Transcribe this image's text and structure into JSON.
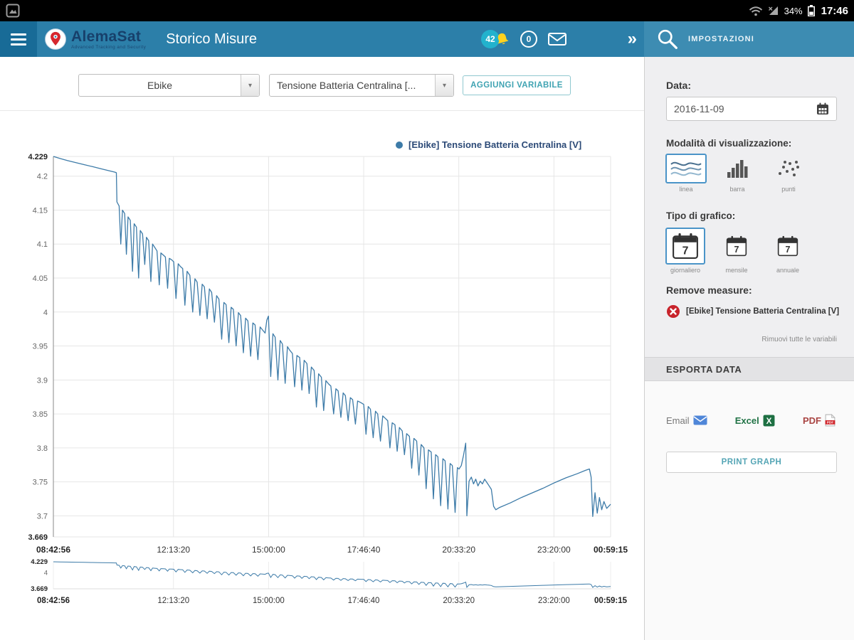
{
  "status_bar": {
    "battery_percent": "34%",
    "time": "17:46"
  },
  "app_bar": {
    "brand": "AlemaSat",
    "tagline": "Advanced Tracking and Security",
    "title": "Storico Misure",
    "alerts_count": "42",
    "messages_count": "0"
  },
  "sidebar_header": {
    "title": "IMPOSTAZIONI"
  },
  "toolbar": {
    "device_value": "Ebike",
    "variable_value": "Tensione Batteria Centralina [...",
    "add_variable": "AGGIUNGI VARIABILE"
  },
  "settings": {
    "date_label": "Data:",
    "date_value": "2016-11-09",
    "view_mode_label": "Modalità di visualizzazione:",
    "view_modes": [
      {
        "label": "linea"
      },
      {
        "label": "barra"
      },
      {
        "label": "punti"
      }
    ],
    "graph_type_label": "Tipo di grafico:",
    "graph_types": [
      {
        "label": "giornaliero"
      },
      {
        "label": "mensile"
      },
      {
        "label": "annuale"
      }
    ],
    "remove_label": "Remove measure:",
    "remove_item": "[Ebike] Tensione Batteria Centralina [V]",
    "remove_all": "Rimuovi tutte le variabili",
    "export_header": "ESPORTA DATA",
    "export": {
      "email": "Email",
      "excel": "Excel",
      "pdf": "PDF"
    },
    "print_button": "PRINT GRAPH"
  },
  "chart_data": {
    "type": "line",
    "title": "",
    "legend": "[Ebike] Tensione Batteria Centralina [V]",
    "ylim": [
      3.669,
      4.229
    ],
    "yticks": [
      {
        "v": 3.669,
        "label": "3.669",
        "bold": true
      },
      {
        "v": 3.7,
        "label": "3.7"
      },
      {
        "v": 3.75,
        "label": "3.75"
      },
      {
        "v": 3.8,
        "label": "3.8"
      },
      {
        "v": 3.85,
        "label": "3.85"
      },
      {
        "v": 3.9,
        "label": "3.9"
      },
      {
        "v": 3.95,
        "label": "3.95"
      },
      {
        "v": 4,
        "label": "4"
      },
      {
        "v": 4.05,
        "label": "4.05"
      },
      {
        "v": 4.1,
        "label": "4.1"
      },
      {
        "v": 4.15,
        "label": "4.15"
      },
      {
        "v": 4.2,
        "label": "4.2"
      },
      {
        "v": 4.229,
        "label": "4.229",
        "bold": true
      }
    ],
    "xticks": [
      {
        "f": 0,
        "label": "08:42:56",
        "bold": true
      },
      {
        "f": 0.2155,
        "label": "12:13:20"
      },
      {
        "f": 0.3862,
        "label": "15:00:00"
      },
      {
        "f": 0.5569,
        "label": "17:46:40"
      },
      {
        "f": 0.7276,
        "label": "20:33:20"
      },
      {
        "f": 0.8983,
        "label": "23:20:00"
      },
      {
        "f": 1,
        "label": "00:59:15",
        "bold": true
      }
    ],
    "navigator": {
      "yticks": [
        {
          "v": 4.229,
          "label": "4.229",
          "bold": true
        },
        {
          "v": 4,
          "label": "4"
        },
        {
          "v": 3.669,
          "label": "3.669",
          "bold": true
        }
      ]
    },
    "series": [
      {
        "name": "[Ebike] Tensione Batteria Centralina [V]",
        "color": "#3d7ba8",
        "points": [
          [
            0,
            4.229
          ],
          [
            0.012,
            4.226
          ],
          [
            0.025,
            4.223
          ],
          [
            0.04,
            4.22
          ],
          [
            0.055,
            4.217
          ],
          [
            0.07,
            4.214
          ],
          [
            0.085,
            4.211
          ],
          [
            0.1,
            4.208
          ],
          [
            0.11,
            4.206
          ],
          [
            0.113,
            4.205
          ],
          [
            0.114,
            4.162
          ],
          [
            0.118,
            4.156
          ],
          [
            0.121,
            4.1
          ],
          [
            0.124,
            4.15
          ],
          [
            0.128,
            4.145
          ],
          [
            0.131,
            4.085
          ],
          [
            0.134,
            4.14
          ],
          [
            0.138,
            4.135
          ],
          [
            0.142,
            4.06
          ],
          [
            0.145,
            4.13
          ],
          [
            0.149,
            4.125
          ],
          [
            0.153,
            4.05
          ],
          [
            0.156,
            4.12
          ],
          [
            0.16,
            4.115
          ],
          [
            0.164,
            4.07
          ],
          [
            0.167,
            4.11
          ],
          [
            0.171,
            4.105
          ],
          [
            0.175,
            4.045
          ],
          [
            0.178,
            4.1
          ],
          [
            0.182,
            4.095
          ],
          [
            0.186,
            4.09
          ],
          [
            0.19,
            4.04
          ],
          [
            0.193,
            4.087
          ],
          [
            0.197,
            4.084
          ],
          [
            0.201,
            4.081
          ],
          [
            0.205,
            4.035
          ],
          [
            0.208,
            4.079
          ],
          [
            0.212,
            4.077
          ],
          [
            0.216,
            4.074
          ],
          [
            0.22,
            4.02
          ],
          [
            0.224,
            4.071
          ],
          [
            0.228,
            4.067
          ],
          [
            0.232,
            4.064
          ],
          [
            0.236,
            4.01
          ],
          [
            0.24,
            4.06
          ],
          [
            0.245,
            4.054
          ],
          [
            0.25,
            4.0
          ],
          [
            0.254,
            4.049
          ],
          [
            0.258,
            4.044
          ],
          [
            0.263,
            3.995
          ],
          [
            0.267,
            4.041
          ],
          [
            0.271,
            4.037
          ],
          [
            0.276,
            3.99
          ],
          [
            0.28,
            4.034
          ],
          [
            0.284,
            4.029
          ],
          [
            0.289,
            3.985
          ],
          [
            0.293,
            4.024
          ],
          [
            0.297,
            4.019
          ],
          [
            0.302,
            3.96
          ],
          [
            0.306,
            4.014
          ],
          [
            0.31,
            4.011
          ],
          [
            0.315,
            3.955
          ],
          [
            0.319,
            4.007
          ],
          [
            0.323,
            4.004
          ],
          [
            0.328,
            3.95
          ],
          [
            0.332,
            3.999
          ],
          [
            0.336,
            3.995
          ],
          [
            0.341,
            3.94
          ],
          [
            0.345,
            3.991
          ],
          [
            0.349,
            3.987
          ],
          [
            0.354,
            3.935
          ],
          [
            0.358,
            3.984
          ],
          [
            0.362,
            3.981
          ],
          [
            0.367,
            3.93
          ],
          [
            0.371,
            3.978
          ],
          [
            0.375,
            3.974
          ],
          [
            0.38,
            3.969
          ],
          [
            0.383,
            3.988
          ],
          [
            0.386,
            3.994
          ],
          [
            0.39,
            3.905
          ],
          [
            0.394,
            3.968
          ],
          [
            0.398,
            3.963
          ],
          [
            0.403,
            3.9
          ],
          [
            0.407,
            3.958
          ],
          [
            0.411,
            3.953
          ],
          [
            0.416,
            3.895
          ],
          [
            0.42,
            3.949
          ],
          [
            0.424,
            3.944
          ],
          [
            0.429,
            3.939
          ],
          [
            0.433,
            3.89
          ],
          [
            0.437,
            3.936
          ],
          [
            0.442,
            3.933
          ],
          [
            0.446,
            3.885
          ],
          [
            0.45,
            3.929
          ],
          [
            0.455,
            3.924
          ],
          [
            0.459,
            3.88
          ],
          [
            0.463,
            3.919
          ],
          [
            0.468,
            3.914
          ],
          [
            0.472,
            3.86
          ],
          [
            0.476,
            3.909
          ],
          [
            0.481,
            3.904
          ],
          [
            0.485,
            3.855
          ],
          [
            0.489,
            3.899
          ],
          [
            0.494,
            3.894
          ],
          [
            0.498,
            3.891
          ],
          [
            0.503,
            3.85
          ],
          [
            0.507,
            3.887
          ],
          [
            0.511,
            3.884
          ],
          [
            0.516,
            3.845
          ],
          [
            0.52,
            3.881
          ],
          [
            0.524,
            3.877
          ],
          [
            0.529,
            3.84
          ],
          [
            0.533,
            3.874
          ],
          [
            0.537,
            3.871
          ],
          [
            0.542,
            3.835
          ],
          [
            0.546,
            3.869
          ],
          [
            0.551,
            3.867
          ],
          [
            0.557,
            3.864
          ],
          [
            0.561,
            3.82
          ],
          [
            0.565,
            3.861
          ],
          [
            0.569,
            3.857
          ],
          [
            0.574,
            3.815
          ],
          [
            0.578,
            3.854
          ],
          [
            0.582,
            3.85
          ],
          [
            0.587,
            3.81
          ],
          [
            0.591,
            3.847
          ],
          [
            0.595,
            3.844
          ],
          [
            0.6,
            3.84
          ],
          [
            0.604,
            3.8
          ],
          [
            0.608,
            3.837
          ],
          [
            0.613,
            3.834
          ],
          [
            0.617,
            3.795
          ],
          [
            0.621,
            3.83
          ],
          [
            0.626,
            3.825
          ],
          [
            0.63,
            3.79
          ],
          [
            0.634,
            3.821
          ],
          [
            0.639,
            3.817
          ],
          [
            0.643,
            3.77
          ],
          [
            0.647,
            3.814
          ],
          [
            0.652,
            3.81
          ],
          [
            0.656,
            3.76
          ],
          [
            0.66,
            3.805
          ],
          [
            0.665,
            3.8
          ],
          [
            0.669,
            3.74
          ],
          [
            0.673,
            3.797
          ],
          [
            0.678,
            3.794
          ],
          [
            0.682,
            3.725
          ],
          [
            0.686,
            3.79
          ],
          [
            0.69,
            3.787
          ],
          [
            0.695,
            3.715
          ],
          [
            0.699,
            3.784
          ],
          [
            0.703,
            3.781
          ],
          [
            0.708,
            3.71
          ],
          [
            0.712,
            3.777
          ],
          [
            0.716,
            3.774
          ],
          [
            0.721,
            3.705
          ],
          [
            0.725,
            3.771
          ],
          [
            0.728,
            3.769
          ],
          [
            0.732,
            3.774
          ],
          [
            0.736,
            3.789
          ],
          [
            0.74,
            3.807
          ],
          [
            0.742,
            3.7
          ],
          [
            0.746,
            3.751
          ],
          [
            0.75,
            3.757
          ],
          [
            0.754,
            3.747
          ],
          [
            0.758,
            3.754
          ],
          [
            0.762,
            3.744
          ],
          [
            0.766,
            3.751
          ],
          [
            0.77,
            3.747
          ],
          [
            0.774,
            3.754
          ],
          [
            0.778,
            3.749
          ],
          [
            0.782,
            3.744
          ],
          [
            0.786,
            3.739
          ],
          [
            0.79,
            3.714
          ],
          [
            0.794,
            3.709
          ],
          [
            0.8,
            3.712
          ],
          [
            0.82,
            3.719
          ],
          [
            0.84,
            3.727
          ],
          [
            0.86,
            3.734
          ],
          [
            0.88,
            3.741
          ],
          [
            0.9,
            3.749
          ],
          [
            0.92,
            3.756
          ],
          [
            0.94,
            3.762
          ],
          [
            0.955,
            3.767
          ],
          [
            0.962,
            3.769
          ],
          [
            0.965,
            3.757
          ],
          [
            0.968,
            3.699
          ],
          [
            0.972,
            3.734
          ],
          [
            0.976,
            3.704
          ],
          [
            0.98,
            3.727
          ],
          [
            0.984,
            3.709
          ],
          [
            0.988,
            3.721
          ],
          [
            0.993,
            3.711
          ],
          [
            1,
            3.717
          ]
        ]
      }
    ]
  }
}
